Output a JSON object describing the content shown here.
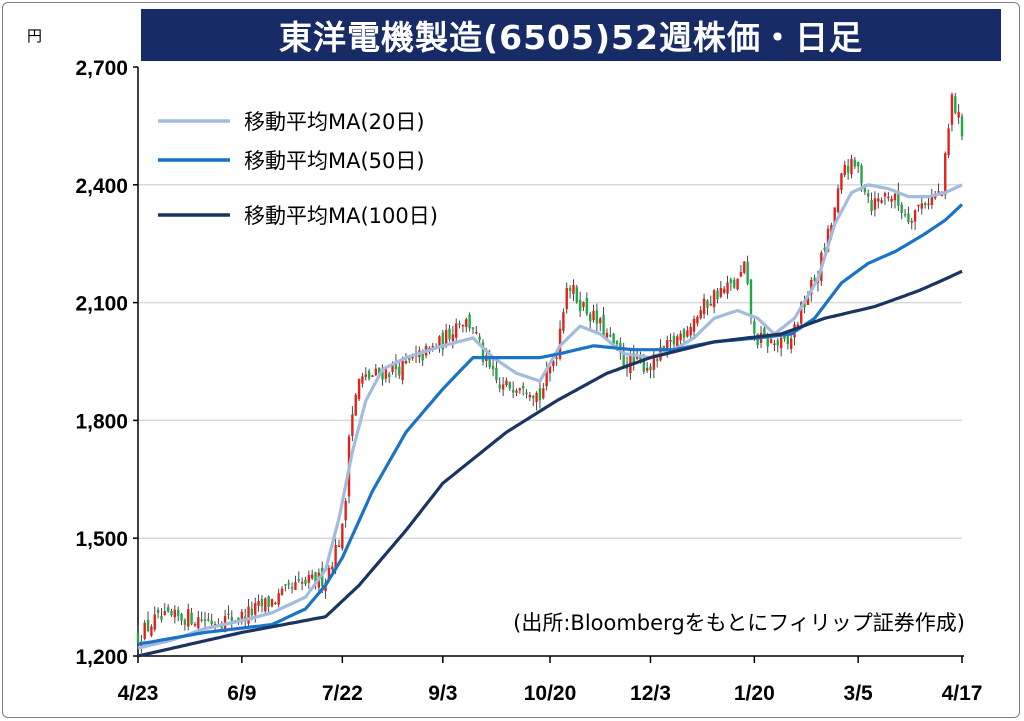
{
  "title": "東洋電機製造(6505)52週株価・日足",
  "unit_label": "円",
  "source_note": "(出所:Bloombergをもとにフィリップ証券作成)",
  "colors": {
    "title_bg": "#172c66",
    "up_candle": "#e2231a",
    "down_candle": "#21a848",
    "ma20": "#a3bcdc",
    "ma50": "#1a73c7",
    "ma100": "#1b3461",
    "grid": "#d9d9d9"
  },
  "chart_data": {
    "type": "candlestick",
    "ylim": [
      1200,
      2700
    ],
    "yticks": [
      1200,
      1500,
      1800,
      2100,
      2400,
      2700
    ],
    "ytick_labels": [
      "1,200",
      "1,500",
      "1,800",
      "2,100",
      "2,400",
      "2,700"
    ],
    "x_tick_labels": [
      "4/23",
      "6/9",
      "7/22",
      "9/3",
      "10/20",
      "12/3",
      "1/20",
      "3/5",
      "4/17"
    ],
    "n_days": 247,
    "x_tick_positions": [
      0,
      31,
      61,
      91,
      123,
      153,
      184,
      215,
      246
    ],
    "grid": "horizontal",
    "legend": {
      "placement": "top-left",
      "entries": [
        "移動平均MA(20日)",
        "移動平均MA(50日)",
        "移動平均MA(100日)"
      ]
    },
    "close_anchors": [
      [
        0,
        1250
      ],
      [
        5,
        1290
      ],
      [
        15,
        1300
      ],
      [
        22,
        1290
      ],
      [
        31,
        1300
      ],
      [
        40,
        1340
      ],
      [
        48,
        1380
      ],
      [
        56,
        1400
      ],
      [
        61,
        1520
      ],
      [
        62,
        1600
      ],
      [
        63,
        1780
      ],
      [
        66,
        1900
      ],
      [
        72,
        1920
      ],
      [
        80,
        1940
      ],
      [
        91,
        2000
      ],
      [
        96,
        2060
      ],
      [
        100,
        2040
      ],
      [
        103,
        1960
      ],
      [
        108,
        1880
      ],
      [
        115,
        1900
      ],
      [
        120,
        1860
      ],
      [
        125,
        1980
      ],
      [
        128,
        2150
      ],
      [
        132,
        2100
      ],
      [
        138,
        2040
      ],
      [
        145,
        1950
      ],
      [
        153,
        1940
      ],
      [
        160,
        2000
      ],
      [
        166,
        2060
      ],
      [
        172,
        2120
      ],
      [
        179,
        2150
      ],
      [
        181,
        2190
      ],
      [
        184,
        2010
      ],
      [
        188,
        2000
      ],
      [
        194,
        1990
      ],
      [
        198,
        2080
      ],
      [
        203,
        2180
      ],
      [
        207,
        2300
      ],
      [
        211,
        2450
      ],
      [
        215,
        2440
      ],
      [
        219,
        2350
      ],
      [
        224,
        2380
      ],
      [
        230,
        2320
      ],
      [
        235,
        2360
      ],
      [
        240,
        2380
      ],
      [
        243,
        2620
      ],
      [
        246,
        2540
      ]
    ],
    "series": [
      {
        "name": "移動平均MA(20日)",
        "anchors": [
          [
            0,
            1220
          ],
          [
            10,
            1240
          ],
          [
            20,
            1270
          ],
          [
            31,
            1290
          ],
          [
            40,
            1310
          ],
          [
            50,
            1350
          ],
          [
            56,
            1420
          ],
          [
            60,
            1550
          ],
          [
            64,
            1720
          ],
          [
            68,
            1850
          ],
          [
            73,
            1930
          ],
          [
            80,
            1960
          ],
          [
            91,
            1990
          ],
          [
            100,
            2010
          ],
          [
            106,
            1960
          ],
          [
            113,
            1920
          ],
          [
            120,
            1900
          ],
          [
            126,
            1990
          ],
          [
            132,
            2040
          ],
          [
            138,
            2020
          ],
          [
            145,
            1970
          ],
          [
            153,
            1960
          ],
          [
            160,
            1980
          ],
          [
            166,
            2010
          ],
          [
            172,
            2060
          ],
          [
            179,
            2080
          ],
          [
            185,
            2060
          ],
          [
            190,
            2020
          ],
          [
            196,
            2060
          ],
          [
            203,
            2160
          ],
          [
            208,
            2300
          ],
          [
            213,
            2380
          ],
          [
            218,
            2400
          ],
          [
            224,
            2390
          ],
          [
            230,
            2370
          ],
          [
            236,
            2370
          ],
          [
            241,
            2380
          ],
          [
            246,
            2400
          ]
        ]
      },
      {
        "name": "移動平均MA(50日)",
        "anchors": [
          [
            0,
            1230
          ],
          [
            20,
            1260
          ],
          [
            40,
            1280
          ],
          [
            50,
            1320
          ],
          [
            56,
            1380
          ],
          [
            61,
            1450
          ],
          [
            70,
            1620
          ],
          [
            80,
            1770
          ],
          [
            91,
            1880
          ],
          [
            100,
            1960
          ],
          [
            110,
            1960
          ],
          [
            120,
            1960
          ],
          [
            126,
            1970
          ],
          [
            136,
            1990
          ],
          [
            148,
            1980
          ],
          [
            160,
            1980
          ],
          [
            172,
            2000
          ],
          [
            185,
            2010
          ],
          [
            195,
            2020
          ],
          [
            202,
            2060
          ],
          [
            210,
            2150
          ],
          [
            218,
            2200
          ],
          [
            226,
            2230
          ],
          [
            234,
            2270
          ],
          [
            241,
            2310
          ],
          [
            246,
            2350
          ]
        ]
      },
      {
        "name": "移動平均MA(100日)",
        "anchors": [
          [
            0,
            1200
          ],
          [
            31,
            1260
          ],
          [
            56,
            1300
          ],
          [
            66,
            1380
          ],
          [
            80,
            1520
          ],
          [
            91,
            1640
          ],
          [
            110,
            1770
          ],
          [
            125,
            1850
          ],
          [
            140,
            1920
          ],
          [
            153,
            1960
          ],
          [
            172,
            2000
          ],
          [
            192,
            2020
          ],
          [
            205,
            2060
          ],
          [
            220,
            2090
          ],
          [
            233,
            2130
          ],
          [
            241,
            2160
          ],
          [
            246,
            2180
          ]
        ]
      }
    ]
  }
}
